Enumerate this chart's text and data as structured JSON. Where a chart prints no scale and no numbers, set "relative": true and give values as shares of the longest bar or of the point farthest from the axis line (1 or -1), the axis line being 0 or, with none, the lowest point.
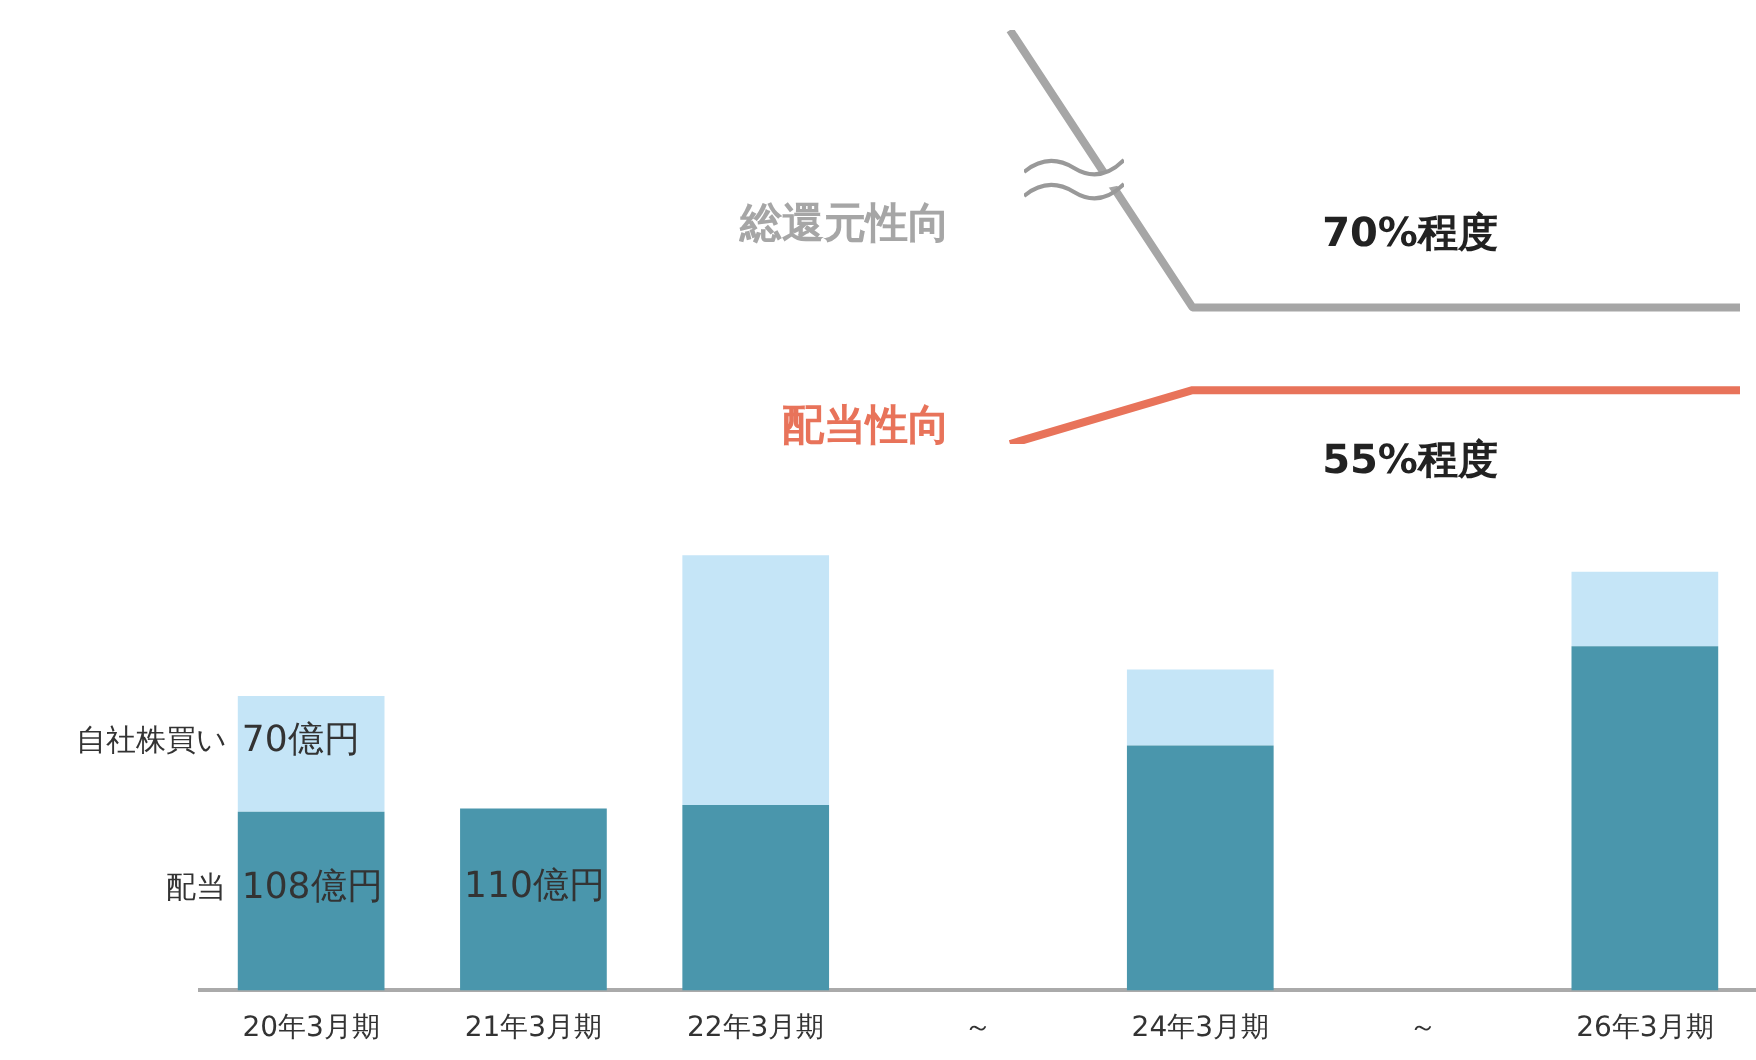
{
  "chart_data": [
    {
      "type": "line",
      "relative": true,
      "marker": "none",
      "categories": [
        null,
        null,
        null,
        null,
        null
      ],
      "series": [
        {
          "name": "総還元性向",
          "color": "#a6a6a6",
          "values": [
            1,
            0.33,
            0.33,
            0.33,
            0.33
          ]
        },
        {
          "name": "配当性向",
          "color": "#e8735a",
          "values": [
            0,
            0.13,
            0.13,
            0.13,
            0.13
          ]
        }
      ],
      "annotations": [
        "70%程度",
        "55%程度"
      ]
    },
    {
      "type": "bar",
      "stacked": true,
      "ylim": [
        0,
        265
      ],
      "categories": [
        "20年3月期",
        "21年3月期",
        "22年3月期",
        "～",
        "24年3月期",
        "～",
        "26年3月期"
      ],
      "series": [
        {
          "name": "配当",
          "color": "#4a96ac",
          "values": [
            108,
            110,
            112,
            null,
            148,
            null,
            208
          ],
          "value_labels": [
            "108億円",
            "110億円",
            null,
            null,
            null,
            null,
            null
          ]
        },
        {
          "name": "自社株買い",
          "color": "#c5e5f7",
          "values": [
            70,
            null,
            151,
            null,
            46,
            null,
            45
          ],
          "value_labels": [
            "70億円",
            null,
            null,
            null,
            null,
            null,
            null
          ]
        }
      ]
    }
  ]
}
